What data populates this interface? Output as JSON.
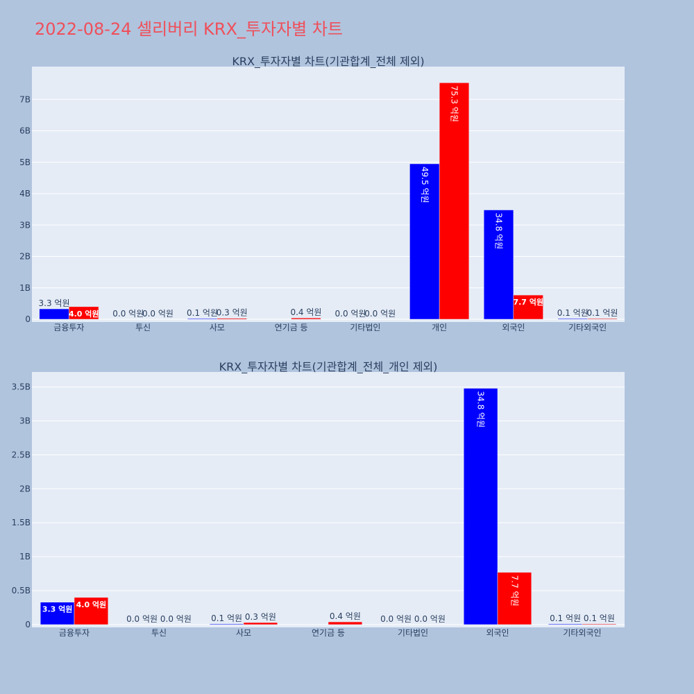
{
  "page": {
    "title": "2022-08-24 셀리버리 KRX_투자자별 차트"
  },
  "colors": {
    "buy": "#0000ff",
    "sell": "#ff0000",
    "plot_bg": "#e5ecf6",
    "page_bg": "#b0c4de",
    "title": "#ef4f5a"
  },
  "chart_data": [
    {
      "type": "bar",
      "title": "KRX_투자자별 차트(기관합계_전체 제외)",
      "categories": [
        "금융투자",
        "투신",
        "사모",
        "연기금 등",
        "기타법인",
        "개인",
        "외국인",
        "기타외국인"
      ],
      "series": [
        {
          "color": "#0000ff",
          "values": [
            330000000,
            0,
            10000000,
            0,
            0,
            4950000000,
            3480000000,
            10000000
          ],
          "labels": [
            "3.3 억원",
            "0.0 억원",
            "0.1 억원",
            "",
            "0.0 억원",
            "49.5 억원",
            "34.8 억원",
            "0.1 억원"
          ]
        },
        {
          "color": "#ff0000",
          "values": [
            400000000,
            0,
            30000000,
            40000000,
            0,
            7530000000,
            770000000,
            10000000
          ],
          "labels": [
            "4.0 억원",
            "0.0 억원",
            "0.3 억원",
            "0.4 억원",
            "0.0 억원",
            "75.3 억원",
            "7.7 억원",
            "0.1 억원"
          ]
        }
      ],
      "yticks": [
        0,
        1000000000,
        2000000000,
        3000000000,
        4000000000,
        5000000000,
        6000000000,
        7000000000
      ],
      "ytick_labels": [
        "0",
        "1B",
        "2B",
        "3B",
        "4B",
        "5B",
        "6B",
        "7B"
      ],
      "ylim": [
        0,
        8000000000
      ],
      "barmode": "group",
      "legend": "none"
    },
    {
      "type": "bar",
      "title": "KRX_투자자별 차트(기관합계_전체_개인 제외)",
      "categories": [
        "금융투자",
        "투신",
        "사모",
        "연기금 등",
        "기타법인",
        "외국인",
        "기타외국인"
      ],
      "series": [
        {
          "color": "#0000ff",
          "values": [
            330000000,
            0,
            10000000,
            0,
            0,
            3480000000,
            10000000
          ],
          "labels": [
            "3.3 억원",
            "0.0 억원",
            "0.1 억원",
            "",
            "0.0 억원",
            "34.8 억원",
            "0.1 억원"
          ]
        },
        {
          "color": "#ff0000",
          "values": [
            400000000,
            0,
            30000000,
            40000000,
            0,
            770000000,
            10000000
          ],
          "labels": [
            "4.0 억원",
            "0.0 억원",
            "0.3 억원",
            "0.4 억원",
            "0.0 억원",
            "7.7 억원",
            "0.1 억원"
          ]
        }
      ],
      "yticks": [
        0,
        500000000,
        1000000000,
        1500000000,
        2000000000,
        2500000000,
        3000000000,
        3500000000
      ],
      "ytick_labels": [
        "0",
        "0.5B",
        "1B",
        "1.5B",
        "2B",
        "2.5B",
        "3B",
        "3.5B"
      ],
      "ylim": [
        0,
        3700000000
      ],
      "barmode": "group",
      "legend": "none"
    }
  ]
}
